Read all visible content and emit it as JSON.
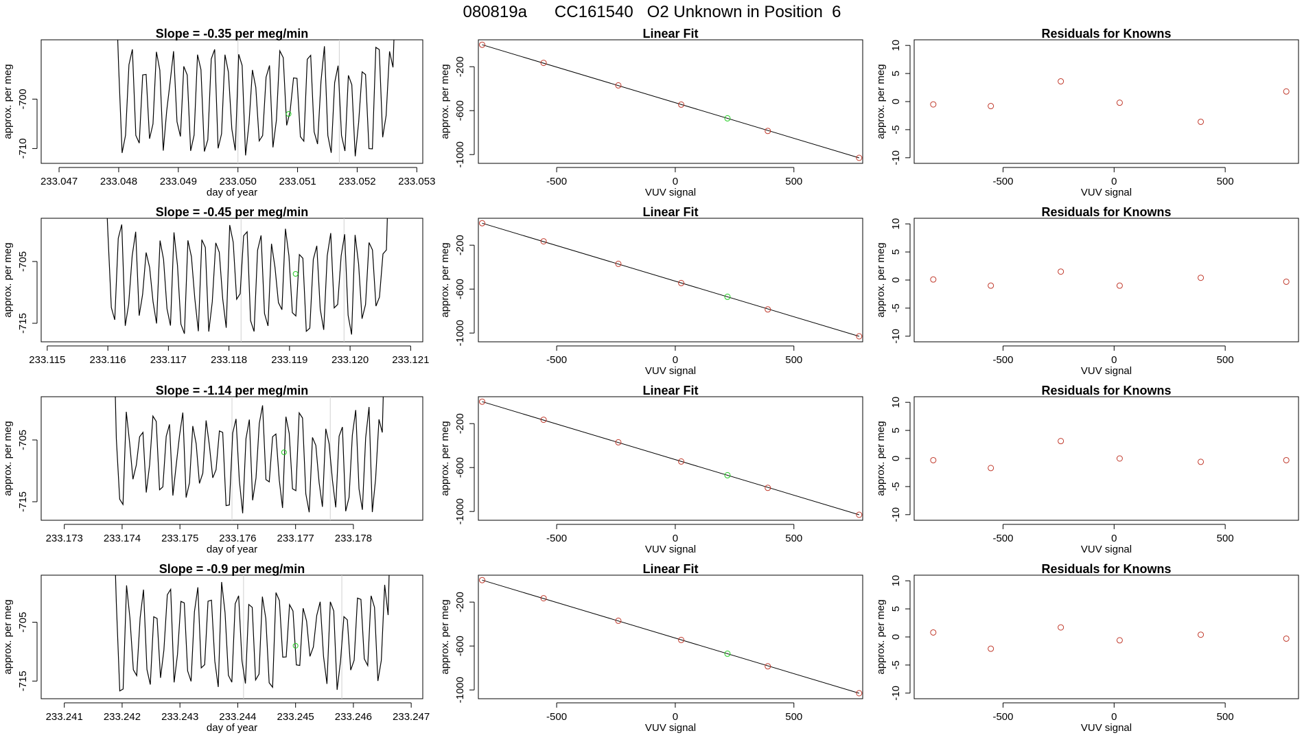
{
  "page_title": "080819a      CC161540   O2 Unknown in Position  6",
  "colors": {
    "trace": "#000000",
    "fit_points": "#c0392b",
    "unknown_point": "#22cc22",
    "marker_lines": "#d0d0d0",
    "axis": "#000000"
  },
  "chart_data": [
    {
      "panel": "row1-timeseries",
      "type": "line",
      "title": "Slope =  -0.35  per meg/min",
      "xlabel": "day of year",
      "ylabel": "approx. per meg",
      "xticks": [
        "233.047",
        "233.048",
        "233.049",
        "233.050",
        "233.051",
        "233.052",
        "233.053"
      ],
      "yticks": [
        "-700",
        "-710"
      ],
      "xlim": [
        233.0467,
        233.0531
      ],
      "ylim": [
        -713,
        -688
      ],
      "series": [
        {
          "x_start": 233.048,
          "x_end": 233.0526,
          "min": -713,
          "max": -688
        }
      ],
      "markers_x": [
        233.05,
        233.0517
      ],
      "unknown_point": {
        "x": 233.05085,
        "y": -703
      }
    },
    {
      "panel": "row1-linearfit",
      "type": "scatter",
      "title": "Linear Fit",
      "xlabel": "VUV signal",
      "ylabel": "approx. per meg",
      "xticks": [
        "-500",
        "0",
        "500"
      ],
      "yticks": [
        "-200",
        "-600",
        "-1000"
      ],
      "xlim": [
        -830,
        790
      ],
      "ylim": [
        -1080,
        45
      ],
      "knowns": [
        {
          "x": -814,
          "y": 0
        },
        {
          "x": -555,
          "y": -165
        },
        {
          "x": -240,
          "y": -370
        },
        {
          "x": 25,
          "y": -545
        },
        {
          "x": 390,
          "y": -785
        },
        {
          "x": 775,
          "y": -1030
        }
      ],
      "unknown_point": {
        "x": 220,
        "y": -670
      },
      "fit_line": {
        "x1": -814,
        "y1": 0,
        "x2": 775,
        "y2": -1030
      }
    },
    {
      "panel": "row1-residuals",
      "type": "scatter",
      "title": "Residuals for Knowns",
      "xlabel": "VUV signal",
      "ylabel": "approx. per meg",
      "xticks": [
        "-500",
        "0",
        "500"
      ],
      "yticks": [
        "10",
        "5",
        "0",
        "-5",
        "-10"
      ],
      "xlim": [
        -900,
        830
      ],
      "ylim": [
        -11,
        11
      ],
      "points": [
        {
          "x": -814,
          "y": -0.5
        },
        {
          "x": -555,
          "y": -0.8
        },
        {
          "x": -240,
          "y": 3.6
        },
        {
          "x": 25,
          "y": -0.2
        },
        {
          "x": 390,
          "y": -3.6
        },
        {
          "x": 775,
          "y": 1.8
        }
      ]
    },
    {
      "panel": "row2-timeseries",
      "type": "line",
      "title": "Slope =  -0.45  per meg/min",
      "xlabel": "",
      "ylabel": "approx. per meg",
      "xticks": [
        "233.115",
        "233.116",
        "233.117",
        "233.118",
        "233.119",
        "233.120",
        "233.121"
      ],
      "yticks": [
        "-705",
        "-715"
      ],
      "xlim": [
        233.1149,
        233.1212
      ],
      "ylim": [
        -718,
        -698
      ],
      "series": [
        {
          "x_start": 233.116,
          "x_end": 233.1206,
          "min": -718,
          "max": -698
        }
      ],
      "markers_x": [
        233.1182,
        233.1199
      ],
      "unknown_point": {
        "x": 233.1191,
        "y": -707
      }
    },
    {
      "panel": "row2-linearfit",
      "type": "scatter",
      "title": "Linear Fit",
      "xlabel": "VUV signal",
      "ylabel": "approx. per meg",
      "xticks": [
        "-500",
        "0",
        "500"
      ],
      "yticks": [
        "-200",
        "-600",
        "-1000"
      ],
      "xlim": [
        -830,
        790
      ],
      "ylim": [
        -1080,
        45
      ],
      "knowns": [
        {
          "x": -814,
          "y": 0
        },
        {
          "x": -555,
          "y": -165
        },
        {
          "x": -240,
          "y": -370
        },
        {
          "x": 25,
          "y": -545
        },
        {
          "x": 390,
          "y": -785
        },
        {
          "x": 775,
          "y": -1030
        }
      ],
      "unknown_point": {
        "x": 220,
        "y": -670
      },
      "fit_line": {
        "x1": -814,
        "y1": 0,
        "x2": 775,
        "y2": -1030
      }
    },
    {
      "panel": "row2-residuals",
      "type": "scatter",
      "title": "Residuals for Knowns",
      "xlabel": "VUV signal",
      "ylabel": "approx. per meg",
      "xticks": [
        "-500",
        "0",
        "500"
      ],
      "yticks": [
        "10",
        "5",
        "0",
        "-5",
        "-10"
      ],
      "xlim": [
        -900,
        830
      ],
      "ylim": [
        -11,
        11
      ],
      "points": [
        {
          "x": -814,
          "y": 0.1
        },
        {
          "x": -555,
          "y": -1.0
        },
        {
          "x": -240,
          "y": 1.5
        },
        {
          "x": 25,
          "y": -1.0
        },
        {
          "x": 390,
          "y": 0.4
        },
        {
          "x": 775,
          "y": -0.3
        }
      ]
    },
    {
      "panel": "row3-timeseries",
      "type": "line",
      "title": "Slope =  -1.14  per meg/min",
      "xlabel": "day of year",
      "ylabel": "approx. per meg",
      "xticks": [
        "233.173",
        "233.174",
        "233.175",
        "233.176",
        "233.177",
        "233.178"
      ],
      "yticks": [
        "-705",
        "-715"
      ],
      "xlim": [
        233.1726,
        233.1792
      ],
      "ylim": [
        -718,
        -698
      ],
      "series": [
        {
          "x_start": 233.1739,
          "x_end": 233.1785,
          "min": -718,
          "max": -698
        }
      ],
      "markers_x": [
        233.1759,
        233.1776
      ],
      "unknown_point": {
        "x": 233.1768,
        "y": -707
      }
    },
    {
      "panel": "row3-linearfit",
      "type": "scatter",
      "title": "Linear Fit",
      "xlabel": "VUV signal",
      "ylabel": "approx. per meg",
      "xticks": [
        "-500",
        "0",
        "500"
      ],
      "yticks": [
        "-200",
        "-600",
        "-1000"
      ],
      "xlim": [
        -830,
        790
      ],
      "ylim": [
        -1080,
        45
      ],
      "knowns": [
        {
          "x": -814,
          "y": 0
        },
        {
          "x": -555,
          "y": -165
        },
        {
          "x": -240,
          "y": -370
        },
        {
          "x": 25,
          "y": -545
        },
        {
          "x": 390,
          "y": -785
        },
        {
          "x": 775,
          "y": -1030
        }
      ],
      "unknown_point": {
        "x": 220,
        "y": -670
      },
      "fit_line": {
        "x1": -814,
        "y1": 0,
        "x2": 775,
        "y2": -1030
      }
    },
    {
      "panel": "row3-residuals",
      "type": "scatter",
      "title": "Residuals for Knowns",
      "xlabel": "VUV signal",
      "ylabel": "approx. per meg",
      "xticks": [
        "-500",
        "0",
        "500"
      ],
      "yticks": [
        "10",
        "5",
        "0",
        "-5",
        "-10"
      ],
      "xlim": [
        -900,
        830
      ],
      "ylim": [
        -11,
        11
      ],
      "points": [
        {
          "x": -814,
          "y": -0.3
        },
        {
          "x": -555,
          "y": -1.7
        },
        {
          "x": -240,
          "y": 3.1
        },
        {
          "x": 25,
          "y": 0.0
        },
        {
          "x": 390,
          "y": -0.6
        },
        {
          "x": 775,
          "y": -0.3
        }
      ]
    },
    {
      "panel": "row4-timeseries",
      "type": "line",
      "title": "Slope =  -0.9  per meg/min",
      "xlabel": "day of year",
      "ylabel": "approx. per meg",
      "xticks": [
        "233.241",
        "233.242",
        "233.243",
        "233.244",
        "233.245",
        "233.246",
        "233.247"
      ],
      "yticks": [
        "-705",
        "-715"
      ],
      "xlim": [
        233.2406,
        233.2472
      ],
      "ylim": [
        -718,
        -697
      ],
      "series": [
        {
          "x_start": 233.2419,
          "x_end": 233.2466,
          "min": -718,
          "max": -697
        }
      ],
      "markers_x": [
        233.2441,
        233.2458
      ],
      "unknown_point": {
        "x": 233.245,
        "y": -709
      }
    },
    {
      "panel": "row4-linearfit",
      "type": "scatter",
      "title": "Linear Fit",
      "xlabel": "VUV signal",
      "ylabel": "approx. per meg",
      "xticks": [
        "-500",
        "0",
        "500"
      ],
      "yticks": [
        "-200",
        "-600",
        "-1000"
      ],
      "xlim": [
        -830,
        790
      ],
      "ylim": [
        -1080,
        45
      ],
      "knowns": [
        {
          "x": -814,
          "y": 0
        },
        {
          "x": -555,
          "y": -165
        },
        {
          "x": -240,
          "y": -370
        },
        {
          "x": 25,
          "y": -545
        },
        {
          "x": 390,
          "y": -785
        },
        {
          "x": 775,
          "y": -1030
        }
      ],
      "unknown_point": {
        "x": 220,
        "y": -670
      },
      "fit_line": {
        "x1": -814,
        "y1": 0,
        "x2": 775,
        "y2": -1030
      }
    },
    {
      "panel": "row4-residuals",
      "type": "scatter",
      "title": "Residuals for Knowns",
      "xlabel": "VUV signal",
      "ylabel": "approx. per meg",
      "xticks": [
        "-500",
        "0",
        "500"
      ],
      "yticks": [
        "10",
        "5",
        "0",
        "-5",
        "-10"
      ],
      "xlim": [
        -900,
        830
      ],
      "ylim": [
        -11,
        11
      ],
      "points": [
        {
          "x": -814,
          "y": 0.8
        },
        {
          "x": -555,
          "y": -2.1
        },
        {
          "x": -240,
          "y": 1.7
        },
        {
          "x": 25,
          "y": -0.6
        },
        {
          "x": 390,
          "y": 0.4
        },
        {
          "x": 775,
          "y": -0.3
        }
      ]
    }
  ]
}
